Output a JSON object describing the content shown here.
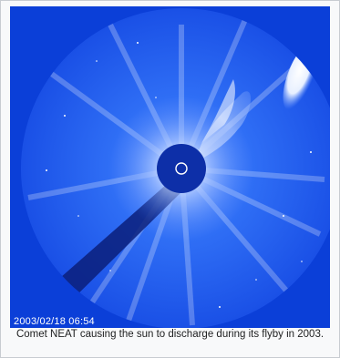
{
  "image": {
    "alt_subject": "coronagraph-image",
    "timestamp": "2003/02/18 06:54",
    "colors": {
      "background": "#0b3fd8",
      "field": "#1a5cf0",
      "occulter": "#0d2fa8",
      "glow": "#ffffff"
    }
  },
  "caption": {
    "text": "Comet NEAT causing the sun to discharge during its flyby in 2003."
  }
}
